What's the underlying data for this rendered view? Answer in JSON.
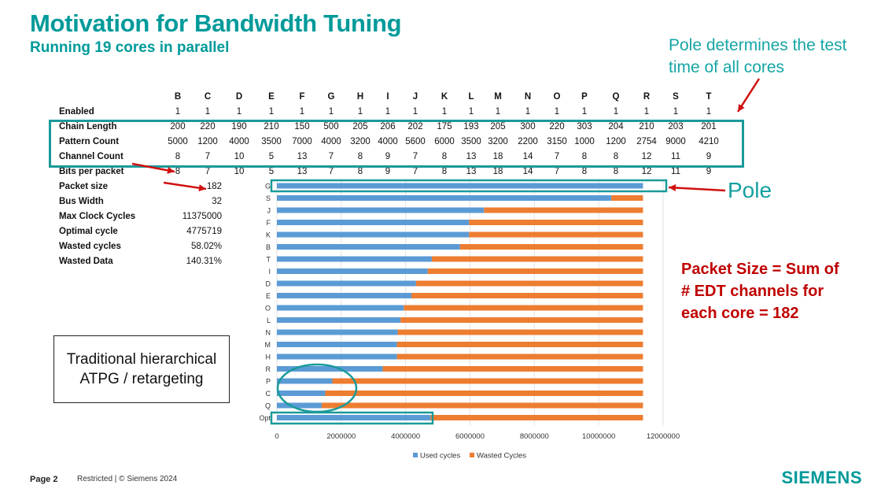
{
  "slide": {
    "title": "Motivation for Bandwidth Tuning",
    "subtitle": "Running 19 cores in parallel",
    "pole_note": "Pole determines the test time of all cores",
    "pole_label": "Pole",
    "packet_note": [
      "Packet Size = Sum of",
      "# EDT channels for",
      "each core = 182"
    ],
    "traditional_box": "Traditional hierarchical ATPG / retargeting",
    "footer_page": "Page 2",
    "footer_legal": "Restricted | © Siemens 2024",
    "logo": "SIEMENS",
    "colors": {
      "title": "#009a9a",
      "annotation_red": "#c00000",
      "highlight_box": "#1a9a9a"
    }
  },
  "table": {
    "cores": [
      "B",
      "C",
      "D",
      "E",
      "F",
      "G",
      "H",
      "I",
      "J",
      "K",
      "L",
      "M",
      "N",
      "O",
      "P",
      "Q",
      "R",
      "S",
      "T"
    ],
    "rows": [
      {
        "label": "Enabled",
        "values": [
          "1",
          "1",
          "1",
          "1",
          "1",
          "1",
          "1",
          "1",
          "1",
          "1",
          "1",
          "1",
          "1",
          "1",
          "1",
          "1",
          "1",
          "1",
          "1"
        ]
      },
      {
        "label": "Chain Length",
        "values": [
          "200",
          "220",
          "190",
          "210",
          "150",
          "500",
          "205",
          "206",
          "202",
          "175",
          "193",
          "205",
          "300",
          "220",
          "303",
          "204",
          "210",
          "203",
          "201"
        ]
      },
      {
        "label": "Pattern Count",
        "values": [
          "5000",
          "1200",
          "4000",
          "3500",
          "7000",
          "4000",
          "3200",
          "4000",
          "5600",
          "6000",
          "3500",
          "3200",
          "2200",
          "3150",
          "1000",
          "1200",
          "2754",
          "9000",
          "4210"
        ]
      },
      {
        "label": "Channel Count",
        "values": [
          "8",
          "7",
          "10",
          "5",
          "13",
          "7",
          "8",
          "9",
          "7",
          "8",
          "13",
          "18",
          "14",
          "7",
          "8",
          "8",
          "12",
          "11",
          "9"
        ]
      },
      {
        "label": "Bits per packet",
        "values": [
          "8",
          "7",
          "10",
          "5",
          "13",
          "7",
          "8",
          "9",
          "7",
          "8",
          "13",
          "18",
          "14",
          "7",
          "8",
          "8",
          "12",
          "11",
          "9"
        ]
      }
    ],
    "summary": [
      {
        "label": "Packet size",
        "value": "182"
      },
      {
        "label": "Bus Width",
        "value": "32"
      },
      {
        "label": "Max Clock Cycles",
        "value": "11375000"
      },
      {
        "label": "Optimal cycle",
        "value": "4775719"
      },
      {
        "label": "Wasted cycles",
        "value": "58.02%"
      },
      {
        "label": "Wasted Data",
        "value": "140.31%"
      }
    ]
  },
  "chart_data": {
    "type": "bar",
    "orientation": "horizontal",
    "stacked": true,
    "categories": [
      "G",
      "S",
      "J",
      "F",
      "K",
      "B",
      "T",
      "I",
      "D",
      "E",
      "O",
      "L",
      "N",
      "M",
      "H",
      "R",
      "P",
      "C",
      "Q",
      "Opt"
    ],
    "series": [
      {
        "name": "Used cycles",
        "color": "#5b9bd5",
        "values": [
          11375000,
          10390000,
          6434000,
          5972000,
          5972000,
          5688000,
          4813000,
          4687000,
          4323000,
          4180000,
          3941000,
          3842000,
          3754000,
          3731000,
          3731000,
          3289000,
          1723000,
          1502000,
          1392000,
          4775719
        ]
      },
      {
        "name": "Wasted Cycles",
        "color": "#ed7d31",
        "values": [
          0,
          985000,
          4941000,
          5403000,
          5403000,
          5687000,
          6562000,
          6688000,
          7052000,
          7195000,
          7434000,
          7533000,
          7621000,
          7644000,
          7644000,
          8086000,
          9652000,
          9873000,
          9983000,
          6599281
        ]
      }
    ],
    "xlim": [
      0,
      12000000
    ],
    "xticks": [
      "0",
      "2000000",
      "4000000",
      "6000000",
      "8000000",
      "10000000",
      "12000000"
    ],
    "grid": true,
    "legend": "bottom"
  }
}
